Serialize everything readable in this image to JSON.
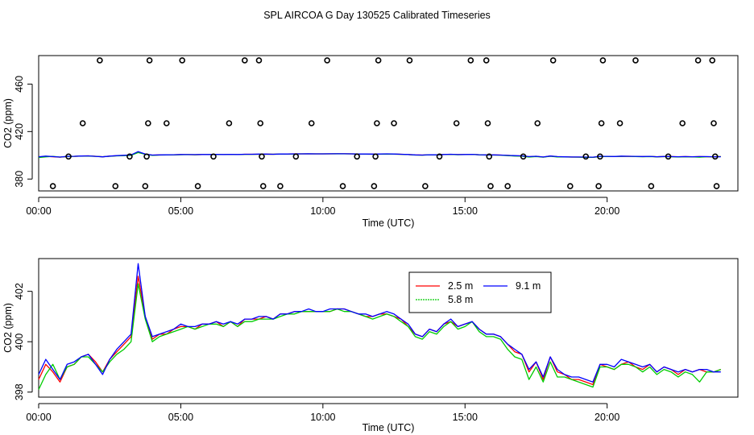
{
  "figure": {
    "title": "SPL AIRCOA G  Day 130525  Calibrated Timeseries"
  },
  "chart_data": [
    {
      "type": "scatter",
      "xlabel": "Time (UTC)",
      "ylabel": "CO2 (ppm)",
      "xlim": [
        0,
        24.6
      ],
      "ylim": [
        370,
        484
      ],
      "x_ticks": [
        0,
        5,
        10,
        15,
        20
      ],
      "x_tick_labels": [
        "00:00",
        "05:00",
        "10:00",
        "15:00",
        "20:00"
      ],
      "y_ticks": [
        380,
        420,
        460
      ],
      "y_tick_labels": [
        "380",
        "420",
        "460"
      ],
      "grid": false,
      "marker": "open-circle",
      "points": [
        [
          0.5,
          374
        ],
        [
          1.05,
          399
        ],
        [
          1.55,
          427
        ],
        [
          2.15,
          480
        ],
        [
          2.7,
          374
        ],
        [
          3.2,
          399
        ],
        [
          3.75,
          374
        ],
        [
          3.8,
          399
        ],
        [
          3.85,
          427
        ],
        [
          3.9,
          480
        ],
        [
          4.5,
          427
        ],
        [
          5.05,
          480
        ],
        [
          5.6,
          374
        ],
        [
          6.15,
          399
        ],
        [
          6.7,
          427
        ],
        [
          7.25,
          480
        ],
        [
          7.75,
          480
        ],
        [
          7.8,
          427
        ],
        [
          7.85,
          399
        ],
        [
          7.9,
          374
        ],
        [
          8.5,
          374
        ],
        [
          9.05,
          399
        ],
        [
          9.6,
          427
        ],
        [
          10.15,
          480
        ],
        [
          10.7,
          374
        ],
        [
          11.2,
          399
        ],
        [
          11.8,
          374
        ],
        [
          11.85,
          399
        ],
        [
          11.9,
          427
        ],
        [
          11.95,
          480
        ],
        [
          12.5,
          427
        ],
        [
          13.05,
          480
        ],
        [
          13.6,
          374
        ],
        [
          14.1,
          399
        ],
        [
          14.7,
          427
        ],
        [
          15.2,
          480
        ],
        [
          15.75,
          480
        ],
        [
          15.8,
          427
        ],
        [
          15.85,
          399
        ],
        [
          15.9,
          374
        ],
        [
          16.5,
          374
        ],
        [
          17.05,
          399
        ],
        [
          17.55,
          427
        ],
        [
          18.1,
          480
        ],
        [
          18.7,
          374
        ],
        [
          19.25,
          399
        ],
        [
          19.7,
          374
        ],
        [
          19.75,
          399
        ],
        [
          19.8,
          427
        ],
        [
          19.85,
          480
        ],
        [
          20.45,
          427
        ],
        [
          21.0,
          480
        ],
        [
          21.55,
          374
        ],
        [
          22.15,
          399
        ],
        [
          22.65,
          427
        ],
        [
          23.2,
          480
        ],
        [
          23.7,
          480
        ],
        [
          23.75,
          427
        ],
        [
          23.8,
          399
        ],
        [
          23.85,
          374
        ]
      ],
      "lines": [
        {
          "color": "#ff0000",
          "key": "s25"
        },
        {
          "color": "#00cc00",
          "key": "s58"
        },
        {
          "color": "#0000ff",
          "key": "s91"
        }
      ]
    },
    {
      "type": "line",
      "xlabel": "Time (UTC)",
      "ylabel": "CO2 (ppm)",
      "xlim": [
        0,
        24.6
      ],
      "ylim": [
        397.8,
        403.3
      ],
      "x_ticks": [
        0,
        5,
        10,
        15,
        20
      ],
      "x_tick_labels": [
        "00:00",
        "05:00",
        "10:00",
        "15:00",
        "20:00"
      ],
      "y_ticks": [
        398,
        400,
        402
      ],
      "y_tick_labels": [
        "398",
        "400",
        "402"
      ],
      "grid": false,
      "legend": {
        "placement": "top-center"
      },
      "x": [
        0.0,
        0.25,
        0.5,
        0.75,
        1.0,
        1.25,
        1.5,
        1.75,
        2.0,
        2.25,
        2.5,
        2.75,
        3.0,
        3.25,
        3.5,
        3.75,
        4.0,
        4.25,
        4.5,
        4.75,
        5.0,
        5.25,
        5.5,
        5.75,
        6.0,
        6.25,
        6.5,
        6.75,
        7.0,
        7.25,
        7.5,
        7.75,
        8.0,
        8.25,
        8.5,
        8.75,
        9.0,
        9.25,
        9.5,
        9.75,
        10.0,
        10.25,
        10.5,
        10.75,
        11.0,
        11.25,
        11.5,
        11.75,
        12.0,
        12.25,
        12.5,
        12.75,
        13.0,
        13.25,
        13.5,
        13.75,
        14.0,
        14.25,
        14.5,
        14.75,
        15.0,
        15.25,
        15.5,
        15.75,
        16.0,
        16.25,
        16.5,
        16.75,
        17.0,
        17.25,
        17.5,
        17.75,
        18.0,
        18.25,
        18.5,
        18.75,
        19.0,
        19.25,
        19.5,
        19.75,
        20.0,
        20.25,
        20.5,
        20.75,
        21.0,
        21.25,
        21.5,
        21.75,
        22.0,
        22.25,
        22.5,
        22.75,
        23.0,
        23.25,
        23.5,
        23.75,
        24.0
      ],
      "series": [
        {
          "key": "s25",
          "name": "2.5 m",
          "color": "#ff0000",
          "values": [
            398.5,
            399.1,
            398.8,
            398.4,
            399.0,
            399.1,
            399.4,
            399.5,
            399.2,
            398.8,
            399.3,
            399.6,
            399.9,
            400.2,
            402.6,
            401.0,
            400.1,
            400.3,
            400.3,
            400.5,
            400.6,
            400.6,
            400.5,
            400.7,
            400.7,
            400.8,
            400.6,
            400.8,
            400.6,
            400.9,
            400.9,
            400.9,
            401.0,
            400.9,
            401.1,
            401.1,
            401.2,
            401.2,
            401.2,
            401.2,
            401.2,
            401.2,
            401.3,
            401.3,
            401.2,
            401.1,
            401.0,
            401.0,
            401.1,
            401.1,
            401.0,
            400.9,
            400.6,
            400.3,
            400.2,
            400.5,
            400.4,
            400.7,
            400.8,
            400.6,
            400.7,
            400.8,
            400.5,
            400.3,
            400.3,
            400.2,
            399.9,
            399.6,
            399.5,
            398.8,
            399.2,
            398.5,
            399.4,
            398.8,
            398.7,
            398.5,
            398.5,
            398.4,
            398.3,
            399.1,
            399.0,
            398.9,
            399.1,
            399.2,
            399.0,
            398.9,
            399.1,
            398.8,
            399.0,
            398.9,
            398.7,
            398.9,
            398.8,
            398.9,
            398.8,
            398.8,
            398.9
          ]
        },
        {
          "key": "s58",
          "name": "5.8 m",
          "color": "#00cc00",
          "values": [
            398.1,
            398.7,
            399.1,
            398.5,
            399.0,
            399.1,
            399.4,
            399.4,
            399.1,
            398.8,
            399.2,
            399.5,
            399.7,
            400.0,
            402.3,
            400.9,
            400.0,
            400.2,
            400.3,
            400.4,
            400.5,
            400.6,
            400.5,
            400.6,
            400.7,
            400.7,
            400.6,
            400.8,
            400.6,
            400.8,
            400.8,
            400.9,
            400.9,
            400.9,
            401.0,
            401.1,
            401.1,
            401.2,
            401.2,
            401.2,
            401.2,
            401.2,
            401.3,
            401.2,
            401.2,
            401.1,
            401.0,
            400.9,
            401.0,
            401.1,
            401.0,
            400.8,
            400.6,
            400.2,
            400.1,
            400.4,
            400.3,
            400.6,
            400.8,
            400.5,
            400.6,
            400.8,
            400.4,
            400.2,
            400.2,
            400.1,
            399.7,
            399.4,
            399.3,
            398.5,
            399.0,
            398.4,
            399.2,
            398.6,
            398.6,
            398.5,
            398.4,
            398.3,
            398.2,
            399.0,
            399.0,
            398.9,
            399.1,
            399.1,
            399.0,
            398.8,
            399.0,
            398.7,
            398.9,
            398.8,
            398.6,
            398.8,
            398.7,
            398.4,
            398.8,
            398.8,
            398.9
          ]
        },
        {
          "key": "s91",
          "name": "9.1 m",
          "color": "#0000ff",
          "values": [
            398.7,
            399.3,
            398.9,
            398.5,
            399.1,
            399.2,
            399.4,
            399.5,
            399.1,
            398.7,
            399.3,
            399.7,
            400.0,
            400.3,
            403.1,
            401.0,
            400.2,
            400.3,
            400.4,
            400.5,
            400.7,
            400.6,
            400.6,
            400.7,
            400.7,
            400.8,
            400.7,
            400.8,
            400.7,
            400.9,
            400.9,
            401.0,
            401.0,
            400.9,
            401.1,
            401.1,
            401.2,
            401.2,
            401.3,
            401.2,
            401.2,
            401.3,
            401.3,
            401.3,
            401.2,
            401.1,
            401.1,
            401.0,
            401.1,
            401.2,
            401.1,
            400.9,
            400.7,
            400.3,
            400.2,
            400.5,
            400.4,
            400.7,
            400.9,
            400.6,
            400.7,
            400.8,
            400.5,
            400.3,
            400.3,
            400.2,
            399.9,
            399.7,
            399.5,
            398.9,
            399.2,
            398.6,
            399.4,
            398.9,
            398.7,
            398.6,
            398.6,
            398.5,
            398.4,
            399.1,
            399.1,
            399.0,
            399.3,
            399.2,
            399.1,
            399.0,
            399.1,
            398.8,
            399.0,
            398.9,
            398.8,
            398.9,
            398.8,
            398.9,
            398.9,
            398.8,
            398.8
          ]
        }
      ]
    }
  ]
}
